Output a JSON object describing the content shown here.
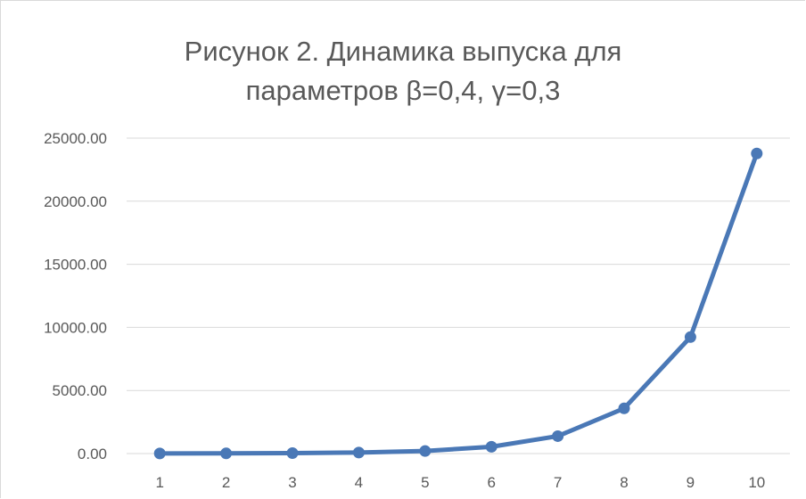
{
  "chart_data": {
    "type": "line",
    "title_line1": "Рисунок 2. Динамика выпуска для",
    "title_line2": "параметров β=0,4, γ=0,3",
    "categories": [
      "1",
      "2",
      "3",
      "4",
      "5",
      "6",
      "7",
      "8",
      "9",
      "10"
    ],
    "series": [
      {
        "values": [
          10,
          15,
          35,
          80,
          200,
          540,
          1380,
          3580,
          9230,
          23780
        ]
      }
    ],
    "y_ticks": [
      "0.00",
      "5000.00",
      "10000.00",
      "15000.00",
      "20000.00",
      "25000.00"
    ],
    "ylim": [
      0,
      25000
    ],
    "grid": true,
    "legend": "none",
    "colors": {
      "line": "#4a78b6",
      "grid": "#d9d9d9",
      "text": "#595959"
    }
  }
}
